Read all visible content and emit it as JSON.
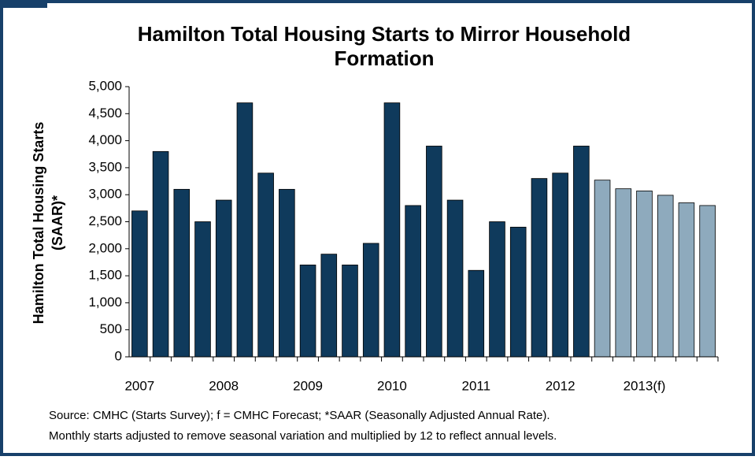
{
  "chart_data": {
    "type": "bar",
    "title": [
      "Hamilton Total Housing Starts to Mirror Household",
      "Formation"
    ],
    "y_label": [
      "Hamilton Total Housing Starts",
      "(SAAR)*"
    ],
    "notes": [
      "Source: CMHC (Starts Survey); f = CMHC Forecast; *SAAR (Seasonally Adjusted Annual Rate).",
      "Monthly starts adjusted to remove seasonal variation and multiplied by 12 to reflect annual levels."
    ],
    "categories": [
      "2007",
      null,
      null,
      null,
      "2008",
      null,
      null,
      null,
      "2009",
      null,
      null,
      null,
      "2010",
      null,
      null,
      null,
      "2011",
      null,
      null,
      null,
      "2012",
      null,
      null,
      null,
      "2013(f)",
      null,
      null,
      null
    ],
    "values": [
      2700,
      3800,
      3100,
      2500,
      2900,
      4700,
      3400,
      3100,
      1700,
      1900,
      1700,
      2100,
      4700,
      2800,
      3900,
      2900,
      1600,
      2500,
      2400,
      3300,
      3400,
      3900,
      3270,
      3110,
      3070,
      2990,
      2850,
      2800
    ],
    "colors": [
      "#0f3a5c",
      "#0f3a5c",
      "#0f3a5c",
      "#0f3a5c",
      "#0f3a5c",
      "#0f3a5c",
      "#0f3a5c",
      "#0f3a5c",
      "#0f3a5c",
      "#0f3a5c",
      "#0f3a5c",
      "#0f3a5c",
      "#0f3a5c",
      "#0f3a5c",
      "#0f3a5c",
      "#0f3a5c",
      "#0f3a5c",
      "#0f3a5c",
      "#0f3a5c",
      "#0f3a5c",
      "#0f3a5c",
      "#0f3a5c",
      "#8eaabd",
      "#8eaabd",
      "#8eaabd",
      "#8eaabd",
      "#8eaabd",
      "#8eaabd"
    ],
    "ylim": [
      0,
      5000
    ],
    "yticks": [
      0,
      500,
      {
        "value": 1000,
        "label": "1,000"
      },
      {
        "value": 1500,
        "label": "1,500"
      },
      {
        "value": 2000,
        "label": "2,000"
      },
      {
        "value": 2500,
        "label": "2,500"
      },
      {
        "value": 3000,
        "label": "3,000"
      },
      {
        "value": 3500,
        "label": "3,500"
      },
      {
        "value": 4000,
        "label": "4,000"
      },
      {
        "value": 4500,
        "label": "4,500"
      },
      {
        "value": 5000,
        "label": "5,000"
      }
    ]
  }
}
